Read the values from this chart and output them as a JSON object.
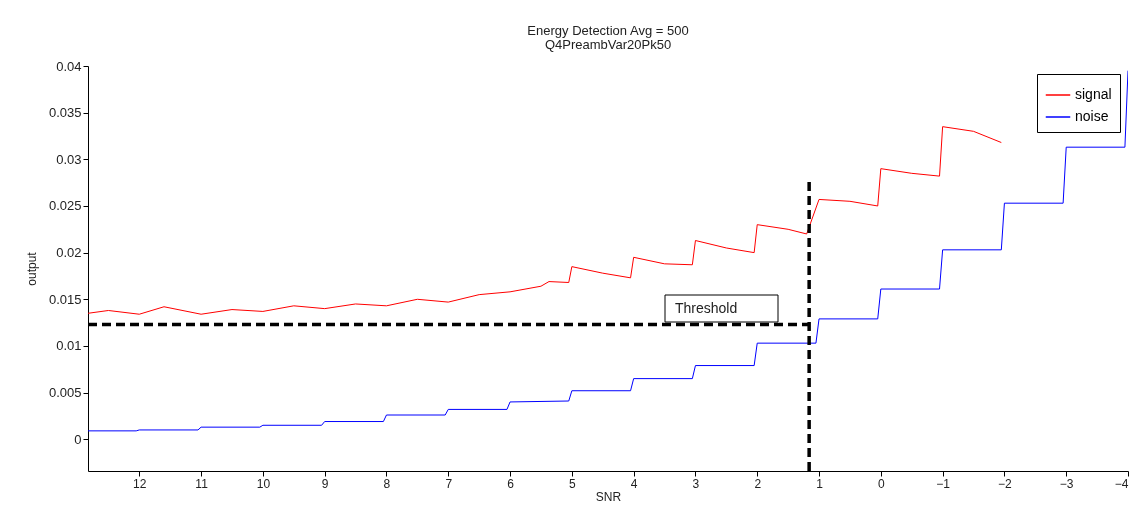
{
  "chart_data": {
    "type": "line",
    "title": "Energy Detection Avg = 500",
    "subtitle": "Q4PreambVar20Pk50",
    "xlabel": "SNR",
    "ylabel": "output",
    "xlim": [
      12.83,
      -4
    ],
    "xticks": [
      12,
      11,
      10,
      9,
      8,
      7,
      6,
      5,
      4,
      3,
      2,
      1,
      0,
      -1,
      -2,
      -3,
      -4
    ],
    "ylim": [
      -0.0034,
      0.04
    ],
    "yticks": [
      0,
      0.005,
      0.01,
      0.015,
      0.02,
      0.025,
      0.03,
      0.035,
      0.04
    ],
    "grid": false,
    "legend": "top right",
    "annotations": [
      "Threshold"
    ],
    "series": [
      {
        "name": "signal",
        "color": "#ff0000",
        "x": [
          12.83,
          12.5,
          12,
          11.6,
          11,
          10.5,
          10,
          9.5,
          9,
          8.5,
          8,
          7.5,
          7,
          6.5,
          6,
          5.5,
          5.37,
          5.05,
          5.0,
          4.5,
          4.05,
          4.0,
          3.5,
          3.05,
          3.0,
          2.5,
          2.05,
          2.0,
          1.5,
          1.2,
          1.0,
          0.5,
          0.05,
          0.0,
          -0.5,
          -0.95,
          -1.0,
          -1.5,
          -1.95
        ],
        "values": [
          0.0135,
          0.0138,
          0.0134,
          0.0142,
          0.0134,
          0.0139,
          0.0137,
          0.0143,
          0.014,
          0.0145,
          0.0143,
          0.015,
          0.0147,
          0.0155,
          0.0158,
          0.0164,
          0.0169,
          0.0168,
          0.0185,
          0.0178,
          0.0173,
          0.0195,
          0.0188,
          0.0187,
          0.0213,
          0.0205,
          0.02,
          0.023,
          0.0225,
          0.022,
          0.0257,
          0.0255,
          0.025,
          0.029,
          0.0285,
          0.0282,
          0.0335,
          0.033,
          0.0318
        ]
      },
      {
        "name": "noise",
        "color": "#0000ff",
        "x": [
          12.83,
          12.05,
          12.0,
          11.05,
          11.0,
          10.05,
          10.0,
          9.05,
          9.0,
          8.05,
          8.0,
          7.05,
          7.0,
          6.05,
          6.0,
          5.05,
          5.0,
          4.05,
          4.0,
          3.05,
          3.0,
          2.05,
          2.0,
          1.05,
          1.0,
          0.05,
          0.0,
          -0.95,
          -1.0,
          -1.95,
          -2.0,
          -2.95,
          -3.0,
          -3.95,
          -4.0
        ],
        "values": [
          0.0009,
          0.0009,
          0.001,
          0.001,
          0.0013,
          0.0013,
          0.0015,
          0.0015,
          0.0019,
          0.0019,
          0.0026,
          0.0026,
          0.0032,
          0.0032,
          0.004,
          0.0041,
          0.0052,
          0.0052,
          0.0065,
          0.0065,
          0.0079,
          0.0079,
          0.0103,
          0.0103,
          0.0129,
          0.0129,
          0.0161,
          0.0161,
          0.0203,
          0.0203,
          0.0253,
          0.0253,
          0.0313,
          0.0313,
          0.0395
        ]
      },
      {
        "color": "#000000",
        "line_style": "dashed",
        "x": [
          12.83,
          1.16
        ],
        "values": [
          0.0123,
          0.0123
        ]
      },
      {
        "color": "#000000",
        "line_style": "dashed",
        "x": [
          1.16,
          1.16
        ],
        "values": [
          -0.0034,
          0.0276
        ]
      }
    ]
  }
}
